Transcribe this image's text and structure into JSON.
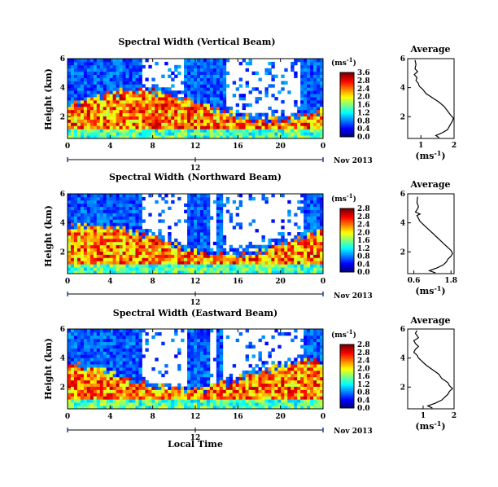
{
  "figure": {
    "shared_xlabel": "Local Time"
  },
  "chart_data": [
    {
      "type": "heatmap",
      "title": "Spectral Width (Vertical Beam)",
      "ylabel": "Height (km)",
      "xlabel": "Local Time",
      "x_ticks": [
        "0",
        "4",
        "8",
        "12",
        "16",
        "20",
        "0"
      ],
      "y_ticks": [
        "2",
        "4",
        "6"
      ],
      "xlim": [
        0,
        24
      ],
      "ylim": [
        0.5,
        6
      ],
      "date_marker": "12",
      "date_label": "Nov 2013",
      "colorbar": {
        "unit": "(ms",
        "unit_sup": "-1",
        "unit_close": ")",
        "labels": [
          "0.0",
          "0.4",
          "0.8",
          "1.2",
          "1.6",
          "2.0",
          "2.4",
          "2.8"
        ],
        "max_label": "3.6",
        "range": [
          0,
          3.6
        ]
      },
      "average_profile": {
        "title": "Average",
        "xlabel": "(ms",
        "xlabel_sup": "-1",
        "xlabel_close": ")",
        "x_ticks": [
          "1",
          "2"
        ],
        "y_ticks": [
          "2",
          "4",
          "6"
        ],
        "xlim": [
          0.6,
          2.0
        ],
        "points": [
          [
            1.55,
            0.55
          ],
          [
            1.45,
            0.7
          ],
          [
            1.65,
            0.9
          ],
          [
            1.8,
            1.1
          ],
          [
            1.85,
            1.3
          ],
          [
            1.9,
            1.5
          ],
          [
            1.95,
            1.7
          ],
          [
            1.98,
            1.9
          ],
          [
            1.9,
            2.1
          ],
          [
            1.8,
            2.4
          ],
          [
            1.7,
            2.7
          ],
          [
            1.55,
            3.0
          ],
          [
            1.35,
            3.3
          ],
          [
            1.15,
            3.6
          ],
          [
            1.05,
            3.9
          ],
          [
            0.95,
            4.1
          ],
          [
            0.92,
            4.3
          ],
          [
            0.85,
            4.5
          ],
          [
            0.88,
            4.7
          ],
          [
            0.8,
            4.9
          ],
          [
            0.9,
            5.1
          ],
          [
            0.82,
            5.3
          ],
          [
            0.85,
            5.6
          ],
          [
            0.82,
            5.9
          ]
        ]
      }
    },
    {
      "type": "heatmap",
      "title": "Spectral Width (Northward Beam)",
      "ylabel": "Height (km)",
      "xlabel": "Local Time",
      "x_ticks": [
        "0",
        "4",
        "8",
        "12",
        "16",
        "20",
        "0"
      ],
      "y_ticks": [
        "2",
        "4",
        "6"
      ],
      "xlim": [
        0,
        24
      ],
      "ylim": [
        0.5,
        6
      ],
      "date_marker": "12",
      "date_label": "Nov 2013",
      "colorbar": {
        "unit": "(ms",
        "unit_sup": "-1",
        "unit_close": ")",
        "labels": [
          "0.0",
          "0.4",
          "0.8",
          "1.2",
          "1.6",
          "2.0",
          "2.4",
          "2.8"
        ],
        "max_label": "2.8",
        "range": [
          0,
          2.8
        ]
      },
      "average_profile": {
        "title": "Average",
        "xlabel": "(ms",
        "xlabel_sup": "-1",
        "xlabel_close": ")",
        "x_ticks": [
          "0.6",
          "1.8"
        ],
        "y_ticks": [
          "2",
          "4",
          "6"
        ],
        "xlim": [
          0.4,
          1.9
        ],
        "points": [
          [
            1.3,
            0.55
          ],
          [
            1.1,
            0.7
          ],
          [
            1.35,
            0.9
          ],
          [
            1.55,
            1.1
          ],
          [
            1.65,
            1.3
          ],
          [
            1.7,
            1.5
          ],
          [
            1.8,
            1.7
          ],
          [
            1.85,
            1.9
          ],
          [
            1.8,
            2.1
          ],
          [
            1.7,
            2.3
          ],
          [
            1.6,
            2.5
          ],
          [
            1.5,
            2.7
          ],
          [
            1.35,
            3.0
          ],
          [
            1.2,
            3.3
          ],
          [
            1.05,
            3.6
          ],
          [
            0.9,
            3.9
          ],
          [
            0.8,
            4.1
          ],
          [
            0.75,
            4.3
          ],
          [
            0.7,
            4.5
          ],
          [
            0.8,
            4.6
          ],
          [
            0.65,
            4.75
          ],
          [
            0.7,
            4.9
          ],
          [
            0.75,
            5.1
          ],
          [
            0.7,
            5.4
          ],
          [
            0.72,
            5.8
          ]
        ]
      }
    },
    {
      "type": "heatmap",
      "title": "Spectral Width (Eastward Beam)",
      "ylabel": "Height (km)",
      "xlabel": "Local Time",
      "x_ticks": [
        "0",
        "4",
        "8",
        "12",
        "16",
        "20",
        "0"
      ],
      "y_ticks": [
        "2",
        "4",
        "6"
      ],
      "xlim": [
        0,
        24
      ],
      "ylim": [
        0.5,
        6
      ],
      "date_marker": "12",
      "date_label": "Nov 2013",
      "colorbar": {
        "unit": "(ms",
        "unit_sup": "-1",
        "unit_close": ")",
        "labels": [
          "0.0",
          "0.4",
          "0.8",
          "1.2",
          "1.6",
          "2.0",
          "2.4",
          "2.8"
        ],
        "max_label": "2.8",
        "range": [
          0,
          2.8
        ]
      },
      "average_profile": {
        "title": "Average",
        "xlabel": "(ms",
        "xlabel_sup": "-1",
        "xlabel_close": ")",
        "x_ticks": [
          "1",
          "2"
        ],
        "y_ticks": [
          "2",
          "4",
          "6"
        ],
        "xlim": [
          0.5,
          2.0
        ],
        "points": [
          [
            1.3,
            0.55
          ],
          [
            1.15,
            0.7
          ],
          [
            1.4,
            0.9
          ],
          [
            1.6,
            1.1
          ],
          [
            1.7,
            1.3
          ],
          [
            1.8,
            1.5
          ],
          [
            1.85,
            1.7
          ],
          [
            1.95,
            1.9
          ],
          [
            1.85,
            2.1
          ],
          [
            1.8,
            2.3
          ],
          [
            1.6,
            2.6
          ],
          [
            1.5,
            2.9
          ],
          [
            1.3,
            3.2
          ],
          [
            1.1,
            3.5
          ],
          [
            0.95,
            3.8
          ],
          [
            0.85,
            4.0
          ],
          [
            0.8,
            4.2
          ],
          [
            0.7,
            4.4
          ],
          [
            0.75,
            4.6
          ],
          [
            0.85,
            4.8
          ],
          [
            0.75,
            5.0
          ],
          [
            0.7,
            5.2
          ],
          [
            0.85,
            5.4
          ],
          [
            0.75,
            5.7
          ],
          [
            0.8,
            5.9
          ]
        ]
      }
    }
  ]
}
